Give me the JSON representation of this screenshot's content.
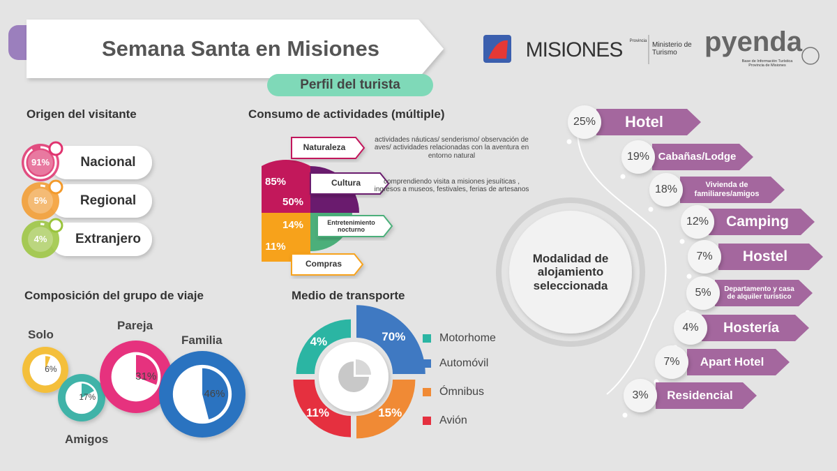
{
  "header": {
    "title": "Semana Santa en Misiones",
    "subtitle": "Perfil del turista"
  },
  "logos": {
    "misiones": "MISIONES",
    "misiones_sup": "Provincia",
    "ministerio": "Ministerio de Turismo",
    "pyenda": "pyenda",
    "pyenda_sub": "Base de Información Turística Provincia de Misiones"
  },
  "origin": {
    "title": "Origen del visitante",
    "items": [
      {
        "label": "Nacional",
        "value": 91,
        "value_label": "91%",
        "color": "#e0336f"
      },
      {
        "label": "Regional",
        "value": 5,
        "value_label": "5%",
        "color": "#f39a2b"
      },
      {
        "label": "Extranjero",
        "value": 4,
        "value_label": "4%",
        "color": "#9ac43c"
      }
    ]
  },
  "activities": {
    "title": "Consumo de actividades (múltiple)",
    "items": [
      {
        "label": "Naturaleza",
        "value": 85,
        "value_label": "85%",
        "color": "#c2185b",
        "description": "actividades náuticas/ senderismo/ observación de aves/ actividades relacionadas con la aventura en entorno natural"
      },
      {
        "label": "Cultura",
        "value": 50,
        "value_label": "50%",
        "color": "#6a1b6e",
        "description": "comprendiendo visita a misiones jesuíticas , ingresos a museos, festivales, ferias de artesanos"
      },
      {
        "label": "Entretenimiento nocturno",
        "value": 14,
        "value_label": "14%",
        "color": "#4caf7a"
      },
      {
        "label": "Compras",
        "value": 11,
        "value_label": "11%",
        "color": "#f7a21b"
      }
    ]
  },
  "group": {
    "title": "Composición del grupo de viaje",
    "items": [
      {
        "label": "Solo",
        "value": 6,
        "value_label": "6%",
        "color": "#f4bf3a"
      },
      {
        "label": "Amigos",
        "value": 17,
        "value_label": "17%",
        "color": "#3fb3a8"
      },
      {
        "label": "Pareja",
        "value": 31,
        "value_label": "31%",
        "color": "#e6327e"
      },
      {
        "label": "Familia",
        "value": 46,
        "value_label": "46%",
        "color": "#2b73c0"
      }
    ]
  },
  "transport": {
    "title": "Medio de transporte",
    "items": [
      {
        "label": "Motorhome",
        "value": 4,
        "value_label": "4%",
        "color": "#2bb5a3"
      },
      {
        "label": "Automóvil",
        "value": 70,
        "value_label": "70%",
        "color": "#3f79c2"
      },
      {
        "label": "Ómnibus",
        "value": 15,
        "value_label": "15%",
        "color": "#f08a35"
      },
      {
        "label": "Avión",
        "value": 11,
        "value_label": "11%",
        "color": "#e5303f"
      }
    ]
  },
  "lodging": {
    "title": "Modalidad de alojamiento seleccionada",
    "color": "#a4679e",
    "items": [
      {
        "label": "Hotel",
        "value": 25,
        "value_label": "25%"
      },
      {
        "label": "Cabañas/Lodge",
        "value": 19,
        "value_label": "19%"
      },
      {
        "label": "Vivienda de familiares/amigos",
        "value": 18,
        "value_label": "18%"
      },
      {
        "label": "Camping",
        "value": 12,
        "value_label": "12%"
      },
      {
        "label": "Hostel",
        "value": 7,
        "value_label": "7%"
      },
      {
        "label": "Departamento y casa de alquiler turístico",
        "value": 5,
        "value_label": "5%"
      },
      {
        "label": "Hostería",
        "value": 4,
        "value_label": "4%"
      },
      {
        "label": "Apart Hotel",
        "value": 7,
        "value_label": "7%"
      },
      {
        "label": "Residencial",
        "value": 3,
        "value_label": "3%"
      }
    ]
  }
}
